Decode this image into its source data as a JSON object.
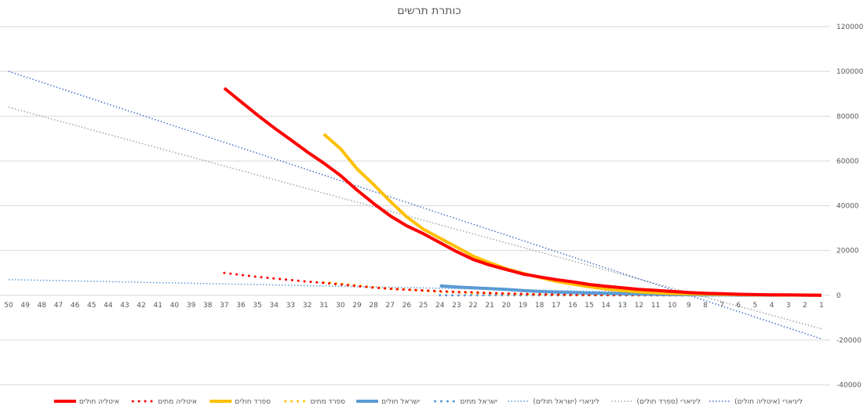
{
  "chart_data": {
    "type": "line",
    "title": "כותרת תרשים",
    "x_reversed": true,
    "x": [
      1,
      2,
      3,
      4,
      5,
      6,
      7,
      8,
      9,
      10,
      11,
      12,
      13,
      14,
      15,
      16,
      17,
      18,
      19,
      20,
      21,
      22,
      23,
      24,
      25,
      26,
      27,
      28,
      29,
      30,
      31,
      32,
      33,
      34,
      35,
      36,
      37,
      38,
      39,
      40,
      41,
      42,
      43,
      44,
      45,
      46,
      47,
      48,
      49,
      50
    ],
    "ylim": [
      -40000,
      120000
    ],
    "yticks": [
      -40000,
      -20000,
      0,
      20000,
      40000,
      60000,
      80000,
      100000,
      120000
    ],
    "grid": true,
    "legend_position": "bottom",
    "series": [
      {
        "name": "איטליה חולים",
        "color": "#FF0000",
        "style": "solid",
        "width": 4,
        "points": [
          [
            37,
            92500
          ],
          [
            36,
            86500
          ],
          [
            35,
            80500
          ],
          [
            34,
            74800
          ],
          [
            33,
            69500
          ],
          [
            32,
            64000
          ],
          [
            31,
            59000
          ],
          [
            30,
            53500
          ],
          [
            29,
            47000
          ],
          [
            28,
            41000
          ],
          [
            27,
            35500
          ],
          [
            26,
            31000
          ],
          [
            25,
            27500
          ],
          [
            24,
            23500
          ],
          [
            23,
            19500
          ],
          [
            22,
            16000
          ],
          [
            21,
            13500
          ],
          [
            20,
            11500
          ],
          [
            19,
            9500
          ],
          [
            18,
            8200
          ],
          [
            17,
            7000
          ],
          [
            16,
            6000
          ],
          [
            15,
            4800
          ],
          [
            14,
            4000
          ],
          [
            13,
            3300
          ],
          [
            12,
            2600
          ],
          [
            11,
            2200
          ],
          [
            10,
            1700
          ],
          [
            9,
            1200
          ],
          [
            8,
            900
          ],
          [
            7,
            700
          ],
          [
            6,
            450
          ],
          [
            5,
            300
          ],
          [
            4,
            200
          ],
          [
            3,
            150
          ],
          [
            2,
            80
          ],
          [
            1,
            20
          ]
        ]
      },
      {
        "name": "איטליה מתים",
        "color": "#FF0000",
        "style": "dotted",
        "width": 3,
        "points": [
          [
            37,
            10000
          ],
          [
            36,
            9100
          ],
          [
            35,
            8200
          ],
          [
            34,
            7500
          ],
          [
            33,
            6800
          ],
          [
            32,
            6100
          ],
          [
            31,
            5500
          ],
          [
            30,
            4800
          ],
          [
            29,
            4100
          ],
          [
            28,
            3400
          ],
          [
            27,
            2900
          ],
          [
            26,
            2500
          ],
          [
            25,
            2150
          ],
          [
            24,
            1800
          ],
          [
            23,
            1500
          ],
          [
            22,
            1300
          ],
          [
            21,
            1000
          ],
          [
            20,
            800
          ],
          [
            19,
            600
          ],
          [
            18,
            450
          ],
          [
            17,
            350
          ],
          [
            16,
            250
          ],
          [
            15,
            200
          ],
          [
            14,
            150
          ],
          [
            13,
            110
          ],
          [
            12,
            80
          ],
          [
            11,
            50
          ],
          [
            10,
            35
          ],
          [
            9,
            25
          ],
          [
            8,
            15
          ],
          [
            7,
            10
          ],
          [
            6,
            5
          ],
          [
            5,
            3
          ],
          [
            4,
            2
          ],
          [
            3,
            1
          ],
          [
            2,
            1
          ],
          [
            1,
            0
          ]
        ]
      },
      {
        "name": "ספרד חולים",
        "color": "#FFC000",
        "style": "solid",
        "width": 4,
        "points": [
          [
            31,
            72000
          ],
          [
            30,
            65500
          ],
          [
            29,
            56500
          ],
          [
            28,
            49500
          ],
          [
            27,
            42000
          ],
          [
            26,
            35000
          ],
          [
            25,
            29500
          ],
          [
            24,
            25500
          ],
          [
            23,
            21500
          ],
          [
            22,
            17500
          ],
          [
            21,
            14500
          ],
          [
            20,
            11800
          ],
          [
            19,
            9800
          ],
          [
            18,
            8000
          ],
          [
            17,
            6200
          ],
          [
            16,
            5000
          ],
          [
            15,
            3800
          ],
          [
            14,
            2800
          ],
          [
            13,
            2100
          ],
          [
            12,
            1500
          ],
          [
            11,
            1100
          ],
          [
            10,
            800
          ],
          [
            9,
            600
          ],
          [
            8,
            500
          ],
          [
            7,
            400
          ],
          [
            6,
            300
          ],
          [
            5,
            200
          ],
          [
            4,
            150
          ],
          [
            3,
            100
          ],
          [
            2,
            50
          ],
          [
            1,
            20
          ]
        ]
      },
      {
        "name": "ספרד מתים",
        "color": "#FFC000",
        "style": "dotted",
        "width": 3,
        "points": [
          [
            31,
            5800
          ],
          [
            30,
            5200
          ],
          [
            29,
            4400
          ],
          [
            28,
            3600
          ],
          [
            27,
            3000
          ],
          [
            26,
            2500
          ],
          [
            25,
            2000
          ],
          [
            24,
            1600
          ],
          [
            23,
            1300
          ],
          [
            22,
            1000
          ],
          [
            21,
            800
          ],
          [
            20,
            600
          ],
          [
            19,
            450
          ],
          [
            18,
            350
          ],
          [
            17,
            250
          ],
          [
            16,
            180
          ],
          [
            15,
            120
          ],
          [
            14,
            80
          ],
          [
            13,
            50
          ],
          [
            12,
            30
          ],
          [
            11,
            20
          ],
          [
            10,
            10
          ],
          [
            9,
            5
          ],
          [
            8,
            3
          ],
          [
            7,
            2
          ],
          [
            6,
            1
          ],
          [
            5,
            1
          ],
          [
            4,
            0
          ],
          [
            3,
            0
          ],
          [
            2,
            0
          ],
          [
            1,
            0
          ]
        ]
      },
      {
        "name": "ישראל חולים",
        "color": "#5B9BD5",
        "style": "solid",
        "width": 4,
        "points": [
          [
            24,
            4200
          ],
          [
            23,
            3700
          ],
          [
            22,
            3300
          ],
          [
            21,
            3000
          ],
          [
            20,
            2600
          ],
          [
            19,
            2100
          ],
          [
            18,
            1700
          ],
          [
            17,
            1400
          ],
          [
            16,
            1200
          ],
          [
            15,
            1000
          ],
          [
            14,
            900
          ],
          [
            13,
            700
          ],
          [
            12,
            500
          ],
          [
            11,
            400
          ],
          [
            10,
            300
          ],
          [
            9,
            250
          ],
          [
            8,
            200
          ],
          [
            7,
            150
          ],
          [
            6,
            100
          ],
          [
            5,
            80
          ],
          [
            4,
            60
          ],
          [
            3,
            40
          ],
          [
            2,
            20
          ],
          [
            1,
            10
          ]
        ]
      },
      {
        "name": "ישראל מתים",
        "color": "#5B9BD5",
        "style": "dotted",
        "width": 3,
        "points": [
          [
            24,
            15
          ],
          [
            23,
            12
          ],
          [
            22,
            10
          ],
          [
            21,
            8
          ],
          [
            20,
            6
          ],
          [
            19,
            5
          ],
          [
            18,
            4
          ],
          [
            17,
            3
          ],
          [
            16,
            2
          ],
          [
            15,
            1
          ],
          [
            14,
            1
          ],
          [
            13,
            1
          ],
          [
            12,
            0
          ],
          [
            11,
            0
          ],
          [
            10,
            0
          ],
          [
            9,
            0
          ],
          [
            8,
            0
          ],
          [
            7,
            0
          ],
          [
            6,
            0
          ],
          [
            5,
            0
          ],
          [
            4,
            0
          ],
          [
            3,
            0
          ],
          [
            2,
            0
          ],
          [
            1,
            0
          ]
        ]
      },
      {
        "name": "ליניארי (ישראל חולים)",
        "color": "#5B9BD5",
        "style": "dotted",
        "width": 1.5,
        "points": [
          [
            50,
            7000
          ],
          [
            1,
            -300
          ]
        ]
      },
      {
        "name": "ליניארי (ספרד חולים)",
        "color": "#A5A5A5",
        "style": "dotted",
        "width": 1.5,
        "points": [
          [
            50,
            84000
          ],
          [
            1,
            -15000
          ]
        ]
      },
      {
        "name": "ליניארי (איטליה חולים)",
        "color": "#4472C4",
        "style": "dotted",
        "width": 1.5,
        "points": [
          [
            50,
            100000
          ],
          [
            1,
            -19500
          ]
        ]
      }
    ],
    "legend_order": [
      "איטליה חולים",
      "איטליה מתים",
      "ספרד חולים",
      "ספרד מתים",
      "ישראל חולים",
      "ישראל מתים",
      "ליניארי (ישראל חולים)",
      "ליניארי (ספרד חולים)",
      "ליניארי (איטליה חולים)"
    ]
  }
}
